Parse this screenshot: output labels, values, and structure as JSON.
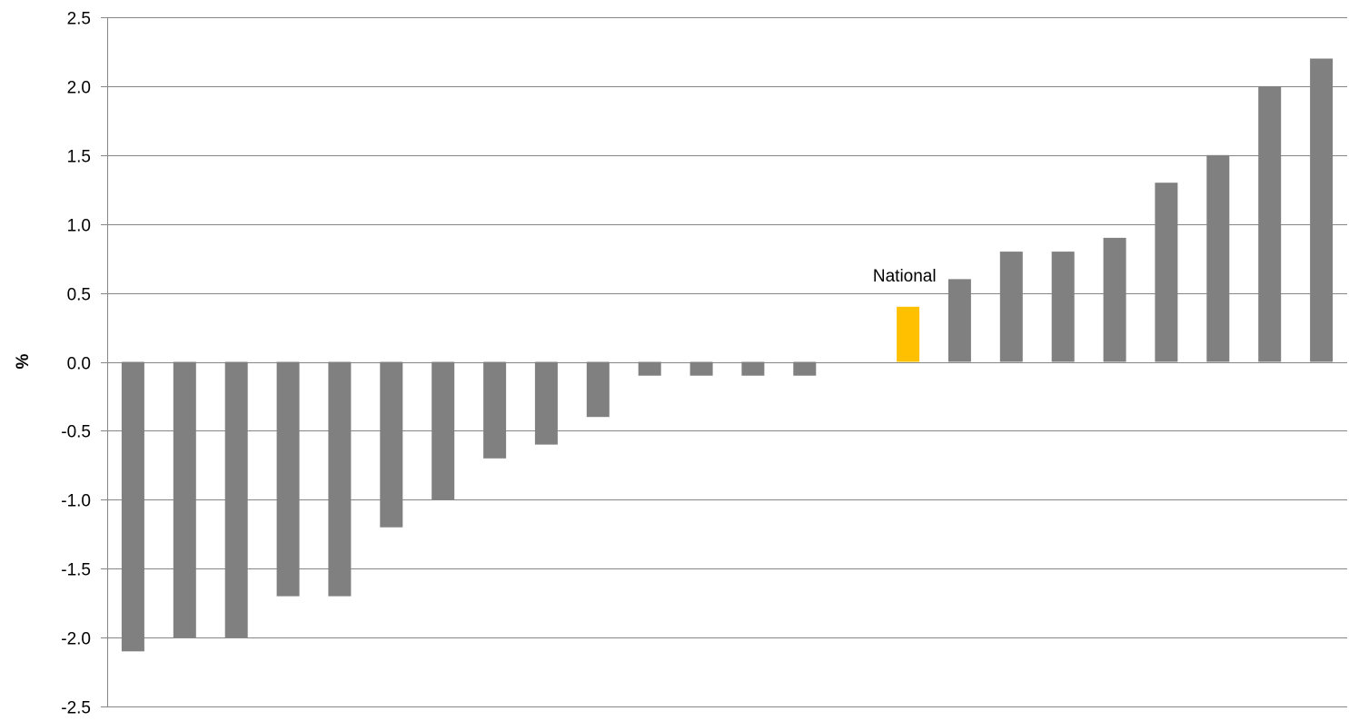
{
  "chart_data": {
    "type": "bar",
    "title": "",
    "xlabel": "",
    "ylabel": "%",
    "ylim": [
      -2.5,
      2.5
    ],
    "yticks": [
      2.5,
      2.0,
      1.5,
      1.0,
      0.5,
      0.0,
      -0.5,
      -1.0,
      -1.5,
      -2.0,
      -2.5
    ],
    "ytick_labels": [
      "2.5",
      "2.0",
      "1.5",
      "1.0",
      "0.5",
      "0.0",
      "-0.5",
      "-1.0",
      "-1.5",
      "-2.0",
      "-2.5"
    ],
    "grid": true,
    "legend": "none",
    "values": [
      -2.1,
      -2.0,
      -2.0,
      -1.7,
      -1.7,
      -1.2,
      -1.0,
      -0.7,
      -0.6,
      -0.4,
      -0.1,
      -0.1,
      -0.1,
      -0.1,
      null,
      0.4,
      0.6,
      0.8,
      0.8,
      0.9,
      1.3,
      1.5,
      2.0,
      2.2
    ],
    "highlight_index": 15,
    "annotations": [
      {
        "text": "National",
        "bar_index": 15
      }
    ],
    "colors": {
      "bar": "#808080",
      "highlight": "#FFC000",
      "grid": "#868686",
      "axis": "#868686",
      "text": "#000000"
    }
  }
}
